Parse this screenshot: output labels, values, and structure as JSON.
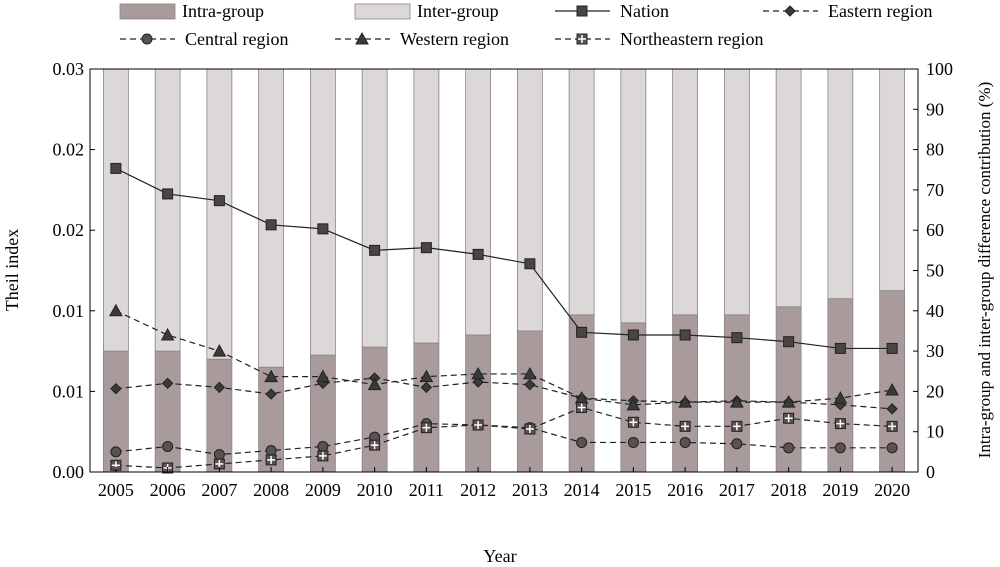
{
  "chart_data": {
    "type": "bar",
    "xlabel": "Year",
    "ylabel": "Theil index",
    "y2label": "Intra-group and inter-group difference contribution (%)",
    "categories": [
      "2005",
      "2006",
      "2007",
      "2008",
      "2009",
      "2010",
      "2011",
      "2012",
      "2013",
      "2014",
      "2015",
      "2016",
      "2017",
      "2018",
      "2019",
      "2020"
    ],
    "y_ticks": [
      "0.00",
      "0.01",
      "0.01",
      "0.02",
      "0.02",
      "0.03"
    ],
    "y_range": [
      0,
      0.03
    ],
    "y2_ticks": [
      "0",
      "10",
      "20",
      "30",
      "40",
      "50",
      "60",
      "70",
      "80",
      "90",
      "100"
    ],
    "y2_range": [
      0,
      100
    ],
    "grid": false,
    "legend_position": "top",
    "bars": [
      {
        "name": "Intra-group",
        "color": "#a99b9b",
        "values": [
          30,
          30,
          28,
          26,
          29,
          31,
          32,
          34,
          35,
          39,
          37,
          39,
          39,
          41,
          43,
          45
        ]
      },
      {
        "name": "Inter-group",
        "color": "#dcd8d8",
        "values": [
          70,
          70,
          72,
          74,
          71,
          69,
          68,
          66,
          65,
          61,
          63,
          61,
          61,
          59,
          57,
          55
        ]
      }
    ],
    "series": [
      {
        "name": "Nation",
        "style": "solid",
        "marker": "square",
        "values": [
          0.0226,
          0.0207,
          0.0202,
          0.0184,
          0.0181,
          0.0165,
          0.0167,
          0.0162,
          0.0155,
          0.0104,
          0.0102,
          0.0102,
          0.01,
          0.0097,
          0.0092,
          0.0092
        ]
      },
      {
        "name": "Eastern region",
        "style": "dashed",
        "marker": "diamond",
        "values": [
          0.0062,
          0.0066,
          0.0063,
          0.0058,
          0.0066,
          0.007,
          0.0063,
          0.0067,
          0.0065,
          0.0055,
          0.0053,
          0.0052,
          0.0053,
          0.0052,
          0.005,
          0.0047
        ]
      },
      {
        "name": "Central region",
        "style": "dashed",
        "marker": "circle",
        "values": [
          0.0015,
          0.0019,
          0.0013,
          0.0016,
          0.0019,
          0.0026,
          0.0036,
          0.0035,
          0.0033,
          0.0022,
          0.0022,
          0.0022,
          0.0021,
          0.0018,
          0.0018,
          0.0018
        ]
      },
      {
        "name": "Western region",
        "style": "dashed",
        "marker": "triangle",
        "values": [
          0.012,
          0.0102,
          0.009,
          0.0071,
          0.0071,
          0.0065,
          0.0071,
          0.0073,
          0.0073,
          0.0055,
          0.005,
          0.0052,
          0.0052,
          0.0052,
          0.0055,
          0.0061
        ]
      },
      {
        "name": "Northeastern region",
        "style": "dashed",
        "marker": "plus-square",
        "values": [
          0.0005,
          0.0003,
          0.0006,
          0.0009,
          0.0012,
          0.002,
          0.0033,
          0.0035,
          0.0032,
          0.0048,
          0.0037,
          0.0034,
          0.0034,
          0.004,
          0.0036,
          0.0034
        ]
      }
    ]
  }
}
